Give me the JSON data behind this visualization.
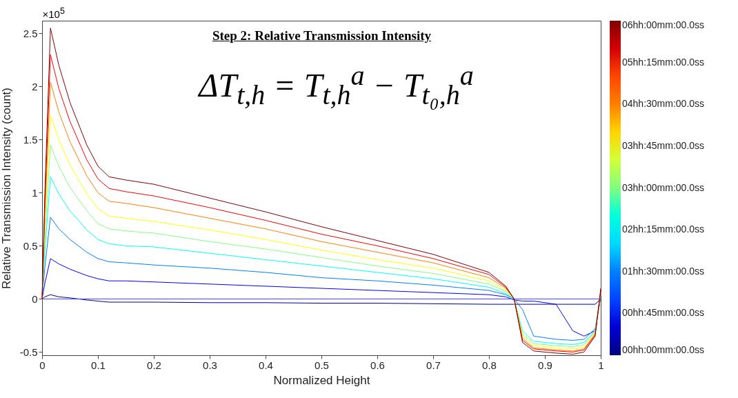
{
  "chart_data": {
    "type": "line",
    "title": "Step 2: Relative Transmission Intensity",
    "xlabel": "Normalized Height",
    "ylabel": "Relative Transmission Intensity (count)",
    "annotations": [
      "×10$^{5}$",
      "ΔT$_{t,h}$ = T$_{t,h}$$^{a}$ − T$_{t₀,h}$$^{a}$"
    ],
    "x": [
      0,
      0.005,
      0.015,
      0.03,
      0.05,
      0.08,
      0.1,
      0.12,
      0.15,
      0.2,
      0.3,
      0.4,
      0.5,
      0.6,
      0.7,
      0.8,
      0.83,
      0.845,
      0.86,
      0.88,
      0.92,
      0.95,
      0.97,
      0.99,
      1.0
    ],
    "series": [
      {
        "color": "#000080",
        "values": [
          0,
          0.02,
          0.04,
          0.02,
          0.01,
          -0.01,
          -0.02,
          -0.03,
          -0.03,
          -0.03,
          -0.035,
          -0.035,
          -0.04,
          -0.04,
          -0.045,
          -0.05,
          -0.05,
          -0.05,
          -0.05,
          -0.05,
          -0.05,
          -0.05,
          -0.05,
          -0.05,
          0
        ]
      },
      {
        "color": "#0000ff",
        "values": [
          0,
          0.15,
          0.38,
          0.33,
          0.28,
          0.22,
          0.19,
          0.17,
          0.17,
          0.16,
          0.14,
          0.12,
          0.1,
          0.08,
          0.06,
          0.04,
          0.02,
          -0.01,
          -0.02,
          -0.02,
          -0.05,
          -0.3,
          -0.35,
          -0.3,
          0.02
        ]
      },
      {
        "color": "#0080ff",
        "values": [
          0,
          0.3,
          0.77,
          0.66,
          0.56,
          0.44,
          0.38,
          0.35,
          0.34,
          0.32,
          0.29,
          0.25,
          0.2,
          0.17,
          0.13,
          0.08,
          0.04,
          0,
          -0.1,
          -0.35,
          -0.38,
          -0.39,
          -0.38,
          -0.28,
          0.03
        ]
      },
      {
        "color": "#00ffff",
        "values": [
          0,
          0.45,
          1.15,
          0.99,
          0.83,
          0.65,
          0.56,
          0.52,
          0.5,
          0.49,
          0.43,
          0.37,
          0.31,
          0.25,
          0.19,
          0.11,
          0.05,
          0,
          -0.3,
          -0.4,
          -0.42,
          -0.43,
          -0.41,
          -0.3,
          0.04
        ]
      },
      {
        "color": "#80ff80",
        "values": [
          0,
          0.57,
          1.45,
          1.25,
          1.05,
          0.83,
          0.71,
          0.66,
          0.64,
          0.62,
          0.54,
          0.47,
          0.39,
          0.31,
          0.24,
          0.14,
          0.07,
          0,
          -0.33,
          -0.42,
          -0.44,
          -0.45,
          -0.43,
          -0.31,
          0.05
        ]
      },
      {
        "color": "#ffff00",
        "values": [
          0,
          0.68,
          1.73,
          1.5,
          1.26,
          0.99,
          0.85,
          0.78,
          0.76,
          0.73,
          0.65,
          0.56,
          0.46,
          0.37,
          0.29,
          0.17,
          0.08,
          0,
          -0.35,
          -0.44,
          -0.46,
          -0.47,
          -0.45,
          -0.32,
          0.06
        ]
      },
      {
        "color": "#ff8000",
        "values": [
          0,
          0.8,
          2.04,
          1.76,
          1.48,
          1.16,
          1.0,
          0.92,
          0.9,
          0.86,
          0.76,
          0.66,
          0.54,
          0.44,
          0.34,
          0.2,
          0.1,
          0,
          -0.37,
          -0.46,
          -0.48,
          -0.49,
          -0.47,
          -0.33,
          0.07
        ]
      },
      {
        "color": "#ff0000",
        "values": [
          0,
          0.9,
          2.3,
          1.98,
          1.67,
          1.31,
          1.13,
          1.04,
          1.01,
          0.97,
          0.86,
          0.74,
          0.61,
          0.5,
          0.38,
          0.23,
          0.11,
          0,
          -0.39,
          -0.47,
          -0.49,
          -0.5,
          -0.48,
          -0.34,
          0.08
        ]
      },
      {
        "color": "#800000",
        "values": [
          0,
          1.0,
          2.55,
          2.2,
          1.85,
          1.45,
          1.25,
          1.15,
          1.12,
          1.08,
          0.95,
          0.82,
          0.68,
          0.55,
          0.42,
          0.25,
          0.12,
          0,
          -0.41,
          -0.49,
          -0.51,
          -0.52,
          -0.5,
          -0.35,
          0.1
        ]
      }
    ],
    "xlim": [
      0,
      1
    ],
    "xticks": [
      0,
      0.1,
      0.2,
      0.3,
      0.4,
      0.5,
      0.6,
      0.7,
      0.8,
      0.9,
      1
    ],
    "ylim": [
      -0.53,
      2.62
    ],
    "yticks": [
      -0.5,
      0,
      0.5,
      1,
      1.5,
      2,
      2.5
    ],
    "ref_lines": [
      {
        "axis": "y",
        "value": 0,
        "color": "#4040ff"
      }
    ],
    "clim": [
      0,
      6
    ],
    "cticks": [
      {
        "value": 0,
        "label": "00hh:00mm:00.0ss"
      },
      {
        "value": 0.75,
        "label": "00hh:45mm:00.0ss"
      },
      {
        "value": 1.5,
        "label": "01hh:30mm:00.0ss"
      },
      {
        "value": 2.25,
        "label": "02hh:15mm:00.0ss"
      },
      {
        "value": 3,
        "label": "03hh:00mm:00.0ss"
      },
      {
        "value": 3.75,
        "label": "03hh:45mm:00.0ss"
      },
      {
        "value": 4.5,
        "label": "04hh:30mm:00.0ss"
      },
      {
        "value": 5.25,
        "label": "05hh:15mm:00.0ss"
      },
      {
        "value": 6,
        "label": "06hh:00mm:00.0ss"
      }
    ],
    "grid": false,
    "marker": "none",
    "line_style": "solid"
  }
}
